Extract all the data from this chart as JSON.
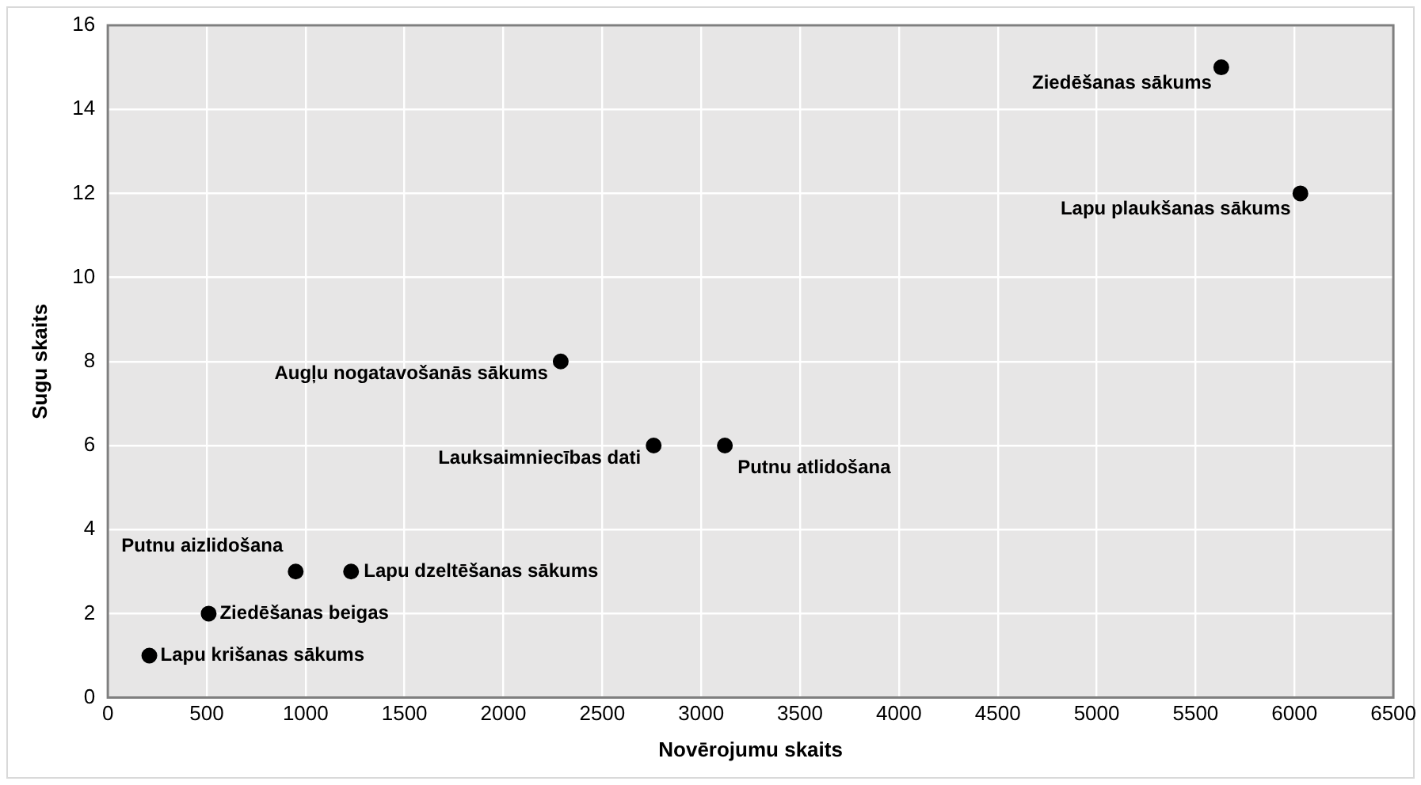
{
  "chart_data": {
    "type": "scatter",
    "xlabel": "Novērojumu skaits",
    "ylabel": "Sugu skaits",
    "x": [
      5630,
      6030,
      2290,
      2760,
      3120,
      950,
      1230,
      510,
      210
    ],
    "values": [
      15,
      12,
      8,
      6,
      6,
      3,
      3,
      2,
      1
    ],
    "color": "#000000",
    "marker": "circle",
    "xlim": [
      0,
      6500
    ],
    "xticks": [
      0,
      500,
      1000,
      1500,
      2000,
      2500,
      3000,
      3500,
      4000,
      4500,
      5000,
      5500,
      6000,
      6500
    ],
    "ylim": [
      0,
      16
    ],
    "yticks": [
      0,
      2,
      4,
      6,
      8,
      10,
      12,
      14,
      16
    ],
    "grid": true,
    "legend": false,
    "annotations": [
      {
        "text": "Ziedēšanas sākums",
        "x": 5630,
        "y": 15
      },
      {
        "text": "Lapu plaukšanas sākums",
        "x": 6030,
        "y": 12
      },
      {
        "text": "Augļu nogatavošanās sākums",
        "x": 2290,
        "y": 8
      },
      {
        "text": "Lauksaimniecības dati",
        "x": 2760,
        "y": 6
      },
      {
        "text": "Putnu atlidošana",
        "x": 3120,
        "y": 6
      },
      {
        "text": "Putnu aizlidošana",
        "x": 950,
        "y": 3
      },
      {
        "text": "Lapu dzeltēšanas sākums",
        "x": 1230,
        "y": 3
      },
      {
        "text": "Ziedēšanas beigas",
        "x": 510,
        "y": 2
      },
      {
        "text": "Lapu krišanas sākums",
        "x": 210,
        "y": 1
      }
    ]
  }
}
